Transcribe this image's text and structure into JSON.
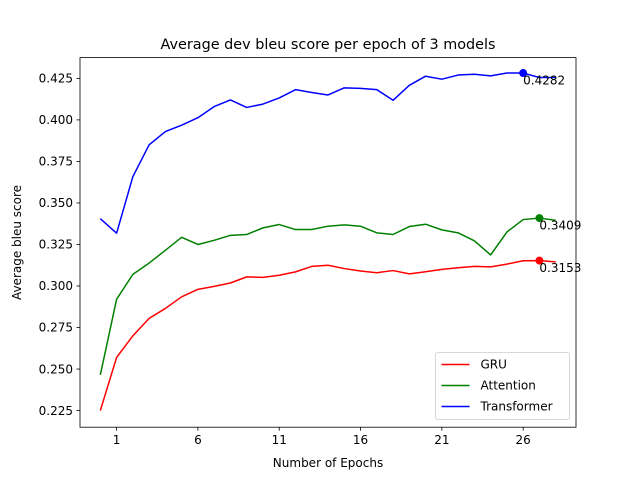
{
  "chart_data": {
    "type": "line",
    "title": "Average dev bleu score per epoch of 3 models",
    "xlabel": "Number of Epochs",
    "ylabel": "Average bleu score",
    "xlim": [
      -1.25,
      29.25
    ],
    "ylim": [
      0.215,
      0.4375
    ],
    "xticks": [
      1,
      6,
      11,
      16,
      21,
      26
    ],
    "xtick_labels": [
      "1",
      "6",
      "11",
      "16",
      "21",
      "26"
    ],
    "yticks": [
      0.225,
      0.25,
      0.275,
      0.3,
      0.325,
      0.35,
      0.375,
      0.4,
      0.425
    ],
    "ytick_labels": [
      "0.225",
      "0.250",
      "0.275",
      "0.300",
      "0.325",
      "0.350",
      "0.375",
      "0.400",
      "0.425"
    ],
    "grid": false,
    "legend_position": "lower-right",
    "x": [
      0,
      1,
      2,
      3,
      4,
      5,
      6,
      7,
      8,
      9,
      10,
      11,
      12,
      13,
      14,
      15,
      16,
      17,
      18,
      19,
      20,
      21,
      22,
      23,
      24,
      25,
      26,
      27,
      28
    ],
    "series": [
      {
        "name": "GRU",
        "color": "#ff0000",
        "values": [
          0.225,
          0.257,
          0.27,
          0.2805,
          0.2865,
          0.2935,
          0.298,
          0.2998,
          0.3018,
          0.3055,
          0.3052,
          0.3065,
          0.3085,
          0.3118,
          0.3125,
          0.3105,
          0.309,
          0.308,
          0.3093,
          0.3073,
          0.3086,
          0.31,
          0.311,
          0.3118,
          0.3115,
          0.3132,
          0.3152,
          0.3153,
          0.3145
        ],
        "marker": {
          "x": 27,
          "y": 0.3153,
          "label": "0.3153"
        }
      },
      {
        "name": "Attention",
        "color": "#008000",
        "values": [
          0.2465,
          0.292,
          0.307,
          0.3138,
          0.3215,
          0.3293,
          0.325,
          0.3275,
          0.3305,
          0.331,
          0.335,
          0.337,
          0.334,
          0.334,
          0.336,
          0.3368,
          0.336,
          0.332,
          0.331,
          0.3358,
          0.3372,
          0.3338,
          0.332,
          0.3272,
          0.3187,
          0.3325,
          0.34,
          0.3409,
          0.3395
        ],
        "marker": {
          "x": 27,
          "y": 0.3409,
          "label": "0.3409"
        }
      },
      {
        "name": "Transformer",
        "color": "#0000ff",
        "values": [
          0.3405,
          0.3318,
          0.3658,
          0.385,
          0.393,
          0.3968,
          0.4013,
          0.408,
          0.412,
          0.4075,
          0.4095,
          0.4132,
          0.4182,
          0.4165,
          0.415,
          0.4193,
          0.419,
          0.4182,
          0.4118,
          0.4208,
          0.4263,
          0.4245,
          0.427,
          0.4275,
          0.4265,
          0.4282,
          0.4282,
          0.4255,
          0.4255
        ],
        "marker": {
          "x": 26,
          "y": 0.4282,
          "label": "0.4282"
        }
      }
    ]
  }
}
